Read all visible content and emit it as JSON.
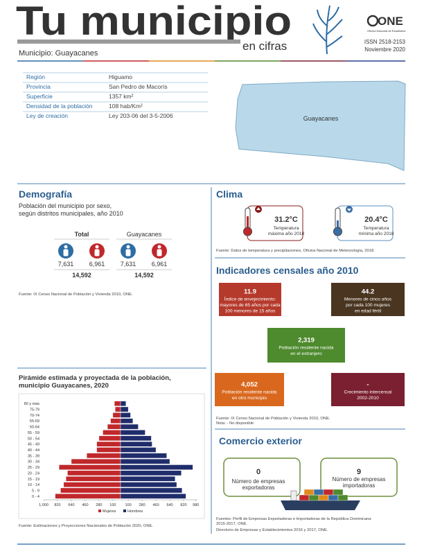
{
  "header": {
    "title": "Tu municipio",
    "subtitle": "en cifras",
    "logo": "ONE",
    "logo_caption": "Oficina Nacional de Estadística",
    "issn": "ISSN 2518-2153",
    "date": "Noviembre 2020",
    "municipality": "Municipio: Guayacanes"
  },
  "info": {
    "rows": [
      [
        "Región",
        "Higuamo"
      ],
      [
        "Provincia",
        "San Pedro de Macorís"
      ],
      [
        "Superficie",
        "1357 km²"
      ],
      [
        "Densidad de la población",
        "108 hab/Km²"
      ],
      [
        "Ley de creación",
        "Ley 203-06 del 3-5-2006"
      ]
    ]
  },
  "map": {
    "label": "Guayacanes"
  },
  "demografia": {
    "title": "Demografía",
    "subtitle": [
      "Población del municipio por sexo,",
      "según distritos municipales, año 2010"
    ],
    "groups": [
      {
        "name": "Total",
        "men": "7,631",
        "women": "6,961",
        "total": "14,592"
      },
      {
        "name": "Guayacanes",
        "men": "7,631",
        "women": "6,961",
        "total": "14,592"
      }
    ],
    "source": "Fuente: IX Censo Nacional de Población y Vivienda 2010, ONE."
  },
  "chart_data": {
    "type": "pyramid",
    "title": [
      "Pirámide estimada y proyectada de la población,",
      "municipio Guayacanes, 2020"
    ],
    "categories": [
      "80 y más",
      "75-79",
      "70-74",
      "65-69",
      "60-64",
      "55 - 59",
      "50 - 54",
      "45 - 49",
      "40 - 44",
      "35 - 39",
      "30 - 34",
      "25 - 29",
      "20 - 24",
      "15 - 19",
      "10 - 14",
      "5 - 9",
      "0 - 4"
    ],
    "series": [
      {
        "name": "Mujeres",
        "color": "#c0282b",
        "values": [
          80,
          70,
          100,
          130,
          170,
          230,
          280,
          310,
          310,
          440,
          640,
          800,
          690,
          710,
          740,
          780,
          850
        ]
      },
      {
        "name": "Hombres",
        "color": "#1f2d6b",
        "values": [
          70,
          100,
          130,
          160,
          230,
          320,
          400,
          410,
          460,
          600,
          640,
          940,
          790,
          710,
          730,
          800,
          850
        ]
      }
    ],
    "xlim": [
      -1000,
      1000
    ],
    "xticks": [
      {
        "value": -1000,
        "label": "1,000"
      },
      {
        "value": -820,
        "label": "820"
      },
      {
        "value": -640,
        "label": "640"
      },
      {
        "value": -460,
        "label": "460"
      },
      {
        "value": -280,
        "label": "280"
      },
      {
        "value": -100,
        "label": "100"
      },
      100,
      280,
      460,
      640,
      820,
      980
    ],
    "legend": "bottom",
    "source": "Fuente: Estimaciones y Proyecciones Nacionales de Población 2020, ONE."
  },
  "clima": {
    "title": "Clima",
    "items": [
      {
        "value": "31.2°C",
        "label": [
          "Temperatura",
          "máxima año 2018"
        ]
      },
      {
        "value": "20.4°C",
        "label": [
          "Temperatura",
          "mínima año 2018"
        ]
      }
    ],
    "source": "Fuente: Datos de temperatura y precipitaciones, Oficina Nacional de Meteorología, 2018."
  },
  "indicadores": {
    "title": "Indicadores censales año 2010",
    "boxes": [
      {
        "value": "11.9",
        "text": [
          "Índice de envejecimiento:",
          "mayores de 65 años por cada",
          "100 menores de 15 años"
        ]
      },
      {
        "value": "44.2",
        "text": [
          "Menores de cinco años",
          "por cada 100 mujeres",
          "en edad fértil"
        ]
      },
      {
        "value": "2,319",
        "text": [
          "Población residente nacida",
          "en el extranjero"
        ]
      },
      {
        "value": "4,052",
        "text": [
          "Población residente nacida",
          "en otro municipio"
        ]
      },
      {
        "value": "-",
        "text": [
          "Crecimiento intercensal",
          "2002-2010"
        ]
      }
    ],
    "source": [
      "Fuente: IX Censo Nacional de Población y Vivienda 2010, ONE.",
      "Nota: - No disponible"
    ]
  },
  "comercio": {
    "title": "Comercio exterior",
    "boxes": [
      {
        "value": "0",
        "text": [
          "Número de empresas",
          "exportadoras"
        ]
      },
      {
        "value": "9",
        "text": [
          "Número de empresas",
          "importadoras"
        ]
      }
    ],
    "source": [
      "Fuentes: Perfil de Empresas Exportadoras e Importadoras de la República Dominicana",
      "2015-2017, ONE.",
      "Directorio de Empresas y Establecimientos 2016 y 2017, ONE."
    ]
  }
}
